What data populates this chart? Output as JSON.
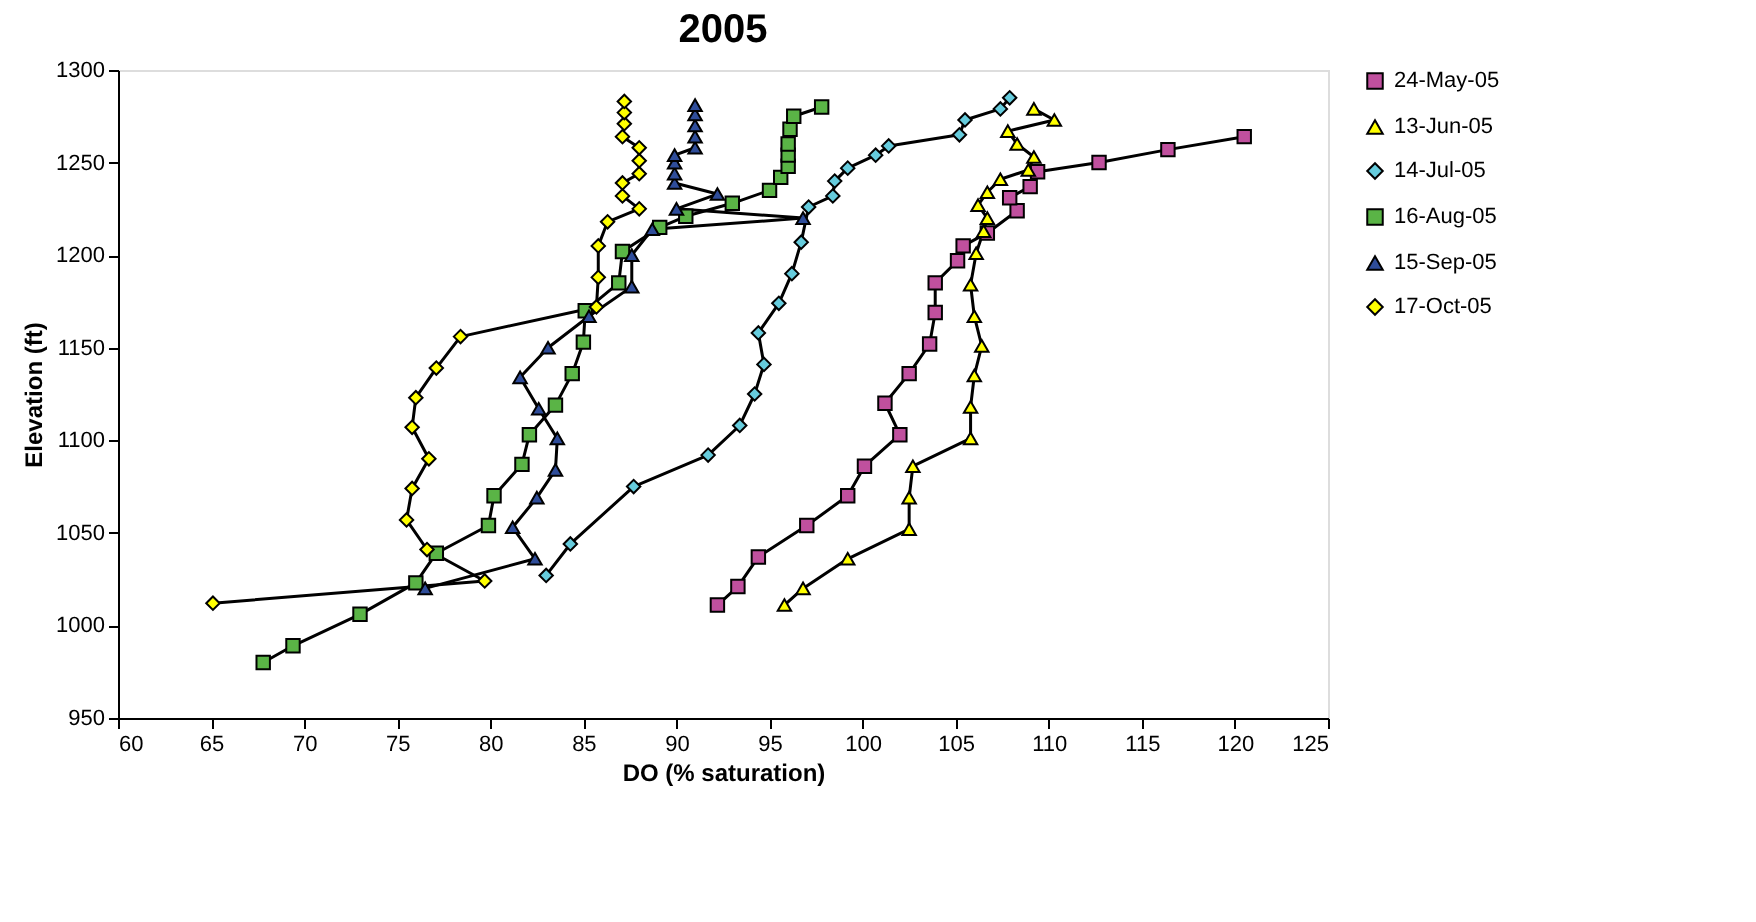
{
  "chart_data": {
    "type": "line",
    "title": "2005",
    "xlabel": "DO (% saturation)",
    "ylabel": "Elevation (ft)",
    "xlim": [
      60,
      125
    ],
    "xticks": [
      60,
      65,
      70,
      75,
      80,
      85,
      90,
      95,
      100,
      105,
      110,
      115,
      120,
      125
    ],
    "ylim": [
      950,
      1300
    ],
    "yticks": [
      950,
      1000,
      1050,
      1100,
      1150,
      1200,
      1250,
      1300
    ],
    "grid": false,
    "legend": "right",
    "line_style": "solid",
    "series": [
      {
        "name": "24-May-05",
        "color": "#c0509e",
        "marker": "square",
        "x": [
          92.2,
          93.3,
          94.4,
          97.0,
          99.2,
          100.1,
          102.0,
          101.2,
          102.5,
          103.6,
          103.9,
          103.9,
          105.1,
          105.4,
          106.7,
          108.3,
          107.9,
          109.0,
          109.4,
          112.7,
          116.4,
          120.5
        ],
        "values": [
          1011,
          1021,
          1037,
          1054,
          1070,
          1086,
          1103,
          1120,
          1136,
          1152,
          1169,
          1185,
          1197,
          1205,
          1212,
          1224,
          1231,
          1237,
          1245,
          1250,
          1257,
          1264
        ]
      },
      {
        "name": "13-Jun-05",
        "color": "#ffff00",
        "marker": "triangle",
        "x": [
          95.8,
          96.8,
          99.2,
          102.5,
          102.5,
          102.7,
          105.8,
          105.8,
          106.0,
          106.4,
          106.0,
          105.8,
          106.1,
          106.5,
          106.7,
          106.2,
          106.7,
          107.4,
          108.9,
          109.2,
          108.3,
          107.8,
          110.3,
          109.2
        ],
        "values": [
          1011,
          1020,
          1036,
          1052,
          1069,
          1086,
          1101,
          1118,
          1135,
          1151,
          1167,
          1184,
          1201,
          1213,
          1220,
          1227,
          1234,
          1241,
          1246,
          1253,
          1260,
          1267,
          1273,
          1279
        ]
      },
      {
        "name": "14-Jul-05",
        "color": "#66ccdd",
        "marker": "diamond",
        "x": [
          83.0,
          84.3,
          87.7,
          91.7,
          93.4,
          94.2,
          94.7,
          94.4,
          95.5,
          96.2,
          96.7,
          96.9,
          97.1,
          98.4,
          98.5,
          99.2,
          100.7,
          101.4,
          105.2,
          105.5,
          107.4,
          107.9
        ],
        "values": [
          1027,
          1044,
          1075,
          1092,
          1108,
          1125,
          1141,
          1158,
          1174,
          1190,
          1207,
          null,
          1226,
          1232,
          1240,
          1247,
          1254,
          1259,
          1265,
          1273,
          1279,
          1285
        ]
      },
      {
        "name": "16-Aug-05",
        "color": "#5ab446",
        "marker": "square",
        "x": [
          67.8,
          69.4,
          73.0,
          76.0,
          77.1,
          79.9,
          80.2,
          81.7,
          82.1,
          83.5,
          84.4,
          85.0,
          85.1,
          86.9,
          87.1,
          89.1,
          90.5,
          93.0,
          95.0,
          95.6,
          96.0,
          96.0,
          96.0,
          96.1,
          96.3,
          97.8
        ],
        "values": [
          980,
          989,
          1006,
          1023,
          1039,
          1054,
          1070,
          1087,
          1103,
          1119,
          1136,
          1153,
          1170,
          1185,
          1202,
          1215,
          1221,
          1228,
          1235,
          1242,
          1248,
          1254,
          1260,
          1268,
          1275,
          1280
        ]
      },
      {
        "name": "15-Sep-05",
        "color": "#2f4d9a",
        "marker": "triangle",
        "x": [
          76.5,
          82.4,
          81.2,
          82.5,
          83.5,
          83.6,
          82.6,
          81.6,
          83.1,
          85.3,
          87.6,
          87.6,
          88.7,
          96.8,
          90.0,
          92.2,
          89.9,
          89.9,
          89.9,
          89.9,
          91.0,
          91.0,
          91.0,
          91.0,
          91.0
        ],
        "values": [
          1020,
          1036,
          1053,
          1069,
          1084,
          1101,
          1117,
          1134,
          1150,
          1167,
          1183,
          1200,
          1214,
          1220,
          1225,
          1233,
          1239,
          1244,
          1250,
          1254,
          1258,
          1264,
          1270,
          1276,
          1281
        ]
      },
      {
        "name": "17-Oct-05",
        "color": "#ffff00",
        "marker": "diamond",
        "x": [
          65.1,
          79.7,
          76.6,
          75.5,
          75.8,
          76.7,
          75.8,
          76.0,
          77.1,
          78.4,
          85.7,
          85.8,
          85.8,
          86.3,
          88.0,
          87.1,
          87.1,
          88.0,
          88.0,
          88.0,
          87.1,
          87.2,
          87.2,
          87.2
        ],
        "values": [
          1012,
          1024,
          1041,
          1057,
          1074,
          1090,
          1107,
          1123,
          1139,
          1156,
          1172,
          1188,
          1205,
          1218,
          1225,
          1232,
          1239,
          1244,
          1251,
          1258,
          1264,
          1271,
          1277,
          1283
        ]
      }
    ]
  }
}
